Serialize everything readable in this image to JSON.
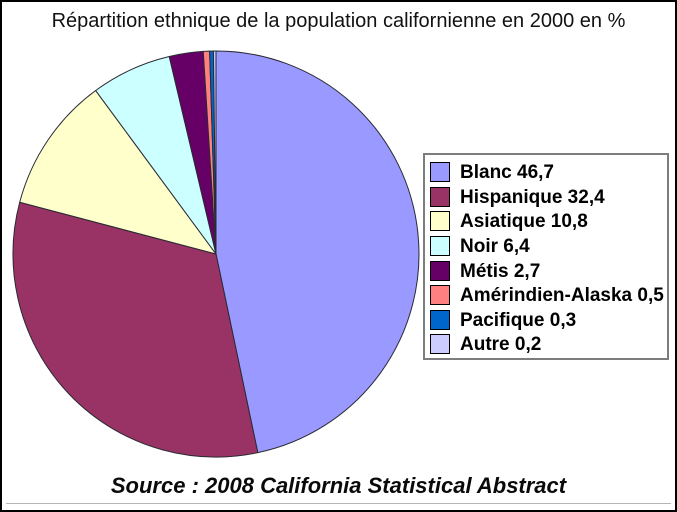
{
  "frame": {
    "background": "#FFFFFF",
    "border_color": "#000000"
  },
  "title": "Répartition ethnique de la population californienne en 2000 en %",
  "source": "Source : 2008 California Statistical Abstract",
  "chart_data": {
    "type": "pie",
    "title": "Répartition ethnique de la population californienne en 2000 en %",
    "categories": [
      "Blanc",
      "Hispanique",
      "Asiatique",
      "Noir",
      "Métis",
      "Amérindien-Alaska",
      "Pacifique",
      "Autre"
    ],
    "values": [
      46.7,
      32.4,
      10.8,
      6.4,
      2.7,
      0.5,
      0.3,
      0.2
    ],
    "value_unit": "%",
    "decimal_style": "comma",
    "colors": [
      "#9999FF",
      "#993366",
      "#FFFFCC",
      "#CCFFFF",
      "#660066",
      "#FF8080",
      "#0066CC",
      "#CCCCFF"
    ],
    "slice_stroke": "#2a2a33",
    "start_angle_deg": 0,
    "direction": "clockwise",
    "legend_position": "right",
    "legend_labels": [
      "Blanc 46,7",
      "Hispanique 32,4",
      "Asiatique 10,8",
      "Noir 6,4",
      "Métis 2,7",
      "Amérindien-Alaska 0,5",
      "Pacifique 0,3",
      "Autre 0,2"
    ],
    "caption": "Source : 2008 California Statistical Abstract"
  }
}
